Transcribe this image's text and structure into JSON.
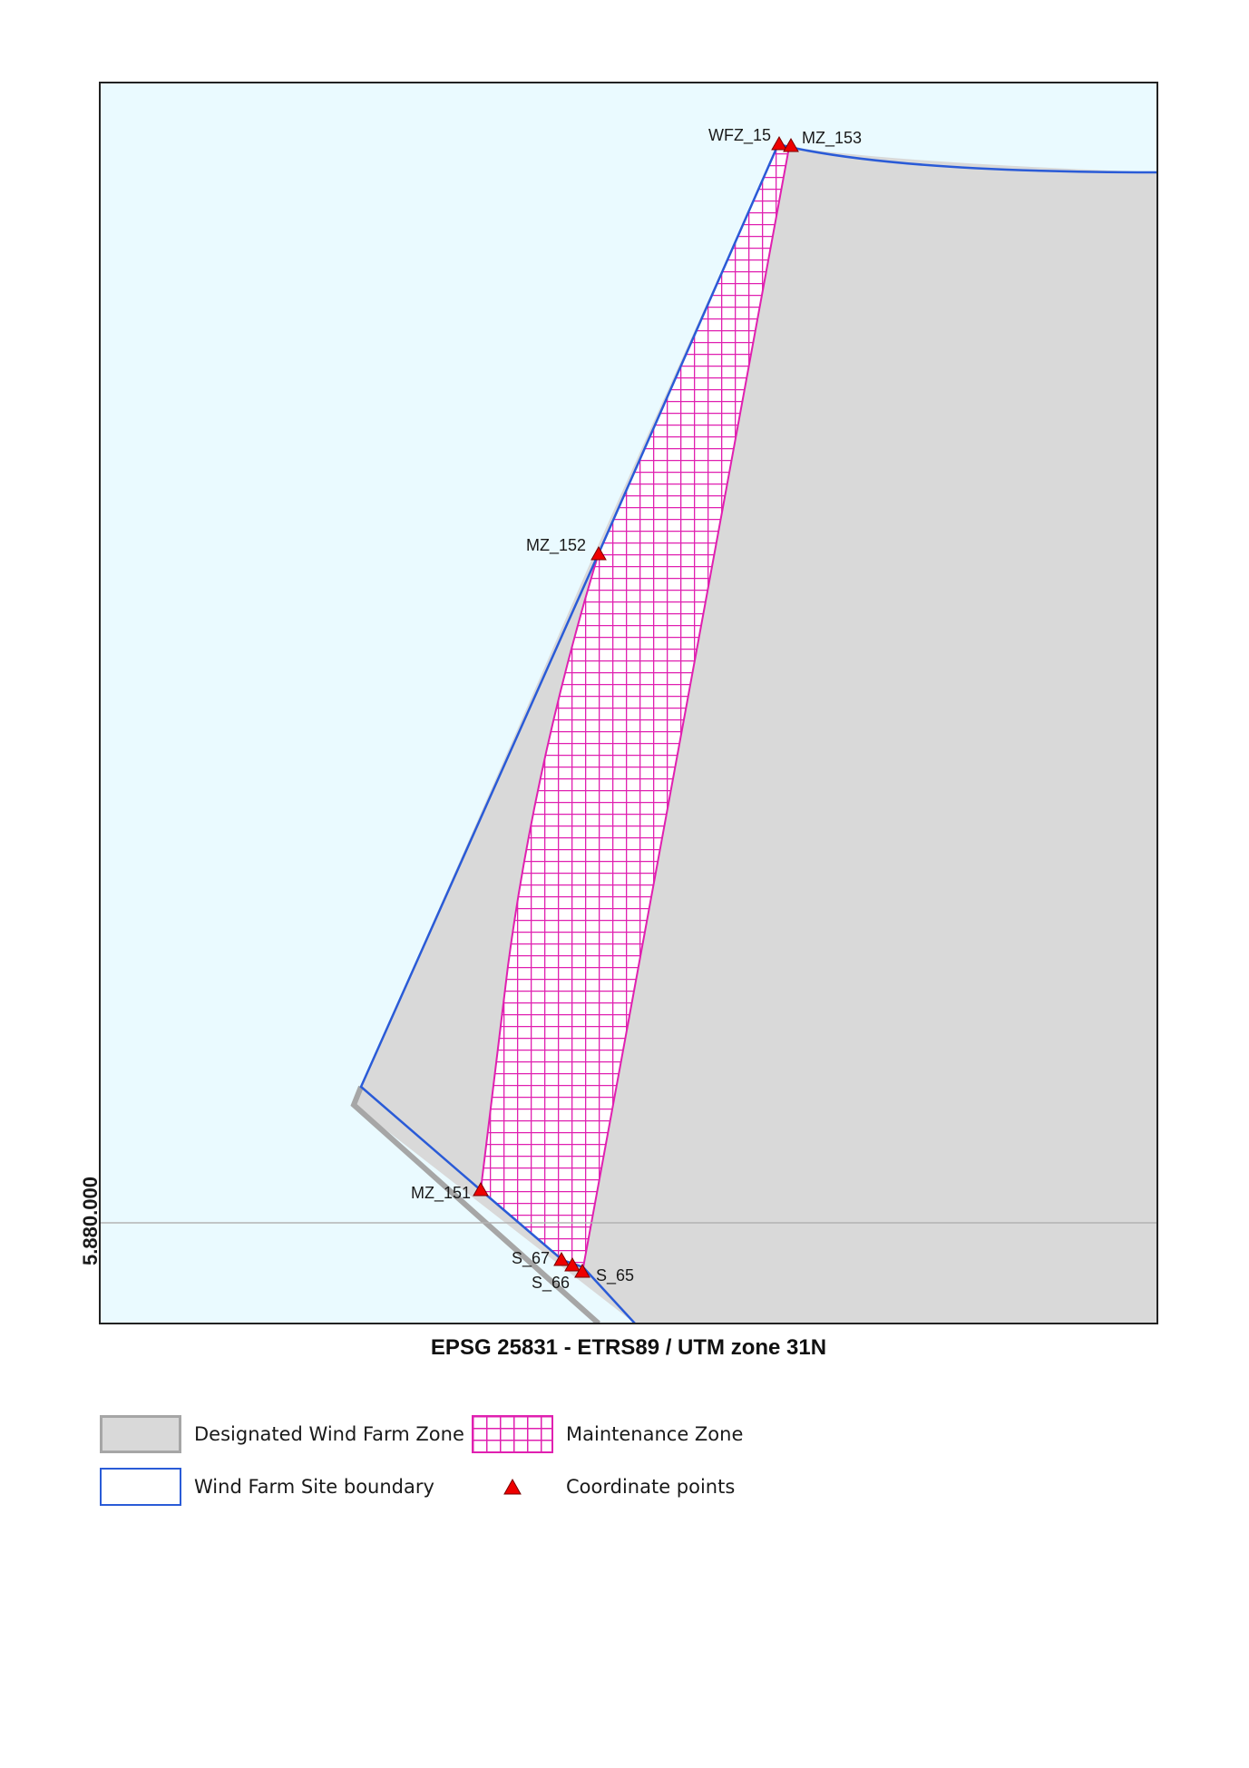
{
  "map": {
    "colors": {
      "sea": "#eafaff",
      "zone_fill": "#d9d9d9",
      "zone_edge": "#a6a6a6",
      "boundary": "#2a5bd7",
      "maintenance": "#e020b0",
      "point": "#ee0000",
      "gridline": "#b3b3b3"
    },
    "northing_label": "5.880.000",
    "points": [
      {
        "id": "WFZ_15",
        "label": "WFZ_15"
      },
      {
        "id": "MZ_153",
        "label": "MZ_153"
      },
      {
        "id": "MZ_152",
        "label": "MZ_152"
      },
      {
        "id": "MZ_151",
        "label": "MZ_151"
      },
      {
        "id": "S_67",
        "label": "S_67"
      },
      {
        "id": "S_66",
        "label": "S_66"
      },
      {
        "id": "S_65",
        "label": "S_65"
      }
    ]
  },
  "crs_caption": "EPSG 25831 - ETRS89 / UTM zone 31N",
  "legend": {
    "zone": "Designated Wind Farm Zone",
    "maintenance": "Maintenance Zone",
    "boundary": "Wind Farm Site boundary",
    "points": "Coordinate points"
  }
}
